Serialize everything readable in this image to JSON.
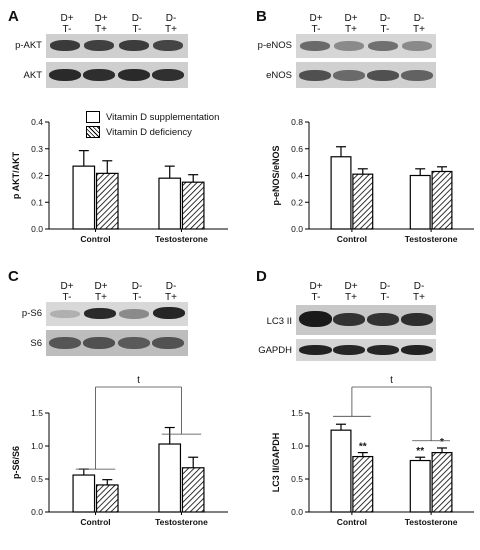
{
  "panels": {
    "A": {
      "letter": "A",
      "blots": [
        {
          "label": "p-AKT"
        },
        {
          "label": "AKT"
        }
      ]
    },
    "B": {
      "letter": "B",
      "blots": [
        {
          "label": "p-eNOS"
        },
        {
          "label": "eNOS"
        }
      ]
    },
    "C": {
      "letter": "C",
      "blots": [
        {
          "label": "p-S6"
        },
        {
          "label": "S6"
        }
      ]
    },
    "D": {
      "letter": "D",
      "blots": [
        {
          "label": "LC3 II"
        },
        {
          "label": "GAPDH"
        }
      ]
    }
  },
  "lane_headers": [
    {
      "d": "D+",
      "t": "T-"
    },
    {
      "d": "D+",
      "t": "T+"
    },
    {
      "d": "D-",
      "t": "T-"
    },
    {
      "d": "D-",
      "t": "T+"
    }
  ],
  "legend": {
    "items": [
      {
        "label": "Vitamin D supplementation",
        "style": "open"
      },
      {
        "label": "Vitamin D deficiency",
        "style": "hatched"
      }
    ]
  },
  "chart_data": [
    {
      "panel": "A",
      "type": "bar",
      "categories": [
        "Control",
        "Testosterone"
      ],
      "ylabel": "p AKT/AKT",
      "ylim": [
        0,
        0.4
      ],
      "yticks": [
        "0.0",
        "0.1",
        "0.2",
        "0.3",
        "0.4"
      ],
      "series": [
        {
          "name": "Vitamin D supplementation",
          "values": [
            0.235,
            0.19
          ],
          "errors": [
            0.058,
            0.045
          ]
        },
        {
          "name": "Vitamin D deficiency",
          "values": [
            0.208,
            0.175
          ],
          "errors": [
            0.047,
            0.028
          ]
        }
      ]
    },
    {
      "panel": "B",
      "type": "bar",
      "categories": [
        "Control",
        "Testosterone"
      ],
      "ylabel": "p-eNOS/eNOS",
      "ylim": [
        0,
        0.8
      ],
      "yticks": [
        "0.0",
        "0.2",
        "0.4",
        "0.6",
        "0.8"
      ],
      "series": [
        {
          "name": "Vitamin D supplementation",
          "values": [
            0.54,
            0.4
          ],
          "errors": [
            0.075,
            0.05
          ]
        },
        {
          "name": "Vitamin D deficiency",
          "values": [
            0.41,
            0.43
          ],
          "errors": [
            0.04,
            0.035
          ]
        }
      ]
    },
    {
      "panel": "C",
      "type": "bar",
      "categories": [
        "Control",
        "Testosterone"
      ],
      "ylabel": "p-S6/S6",
      "ylim": [
        0,
        1.5
      ],
      "yticks": [
        "0.0",
        "0.5",
        "1.0",
        "1.5"
      ],
      "significance": "t",
      "series": [
        {
          "name": "Vitamin D supplementation",
          "values": [
            0.56,
            1.03
          ],
          "errors": [
            0.09,
            0.25
          ]
        },
        {
          "name": "Vitamin D deficiency",
          "values": [
            0.41,
            0.67
          ],
          "errors": [
            0.08,
            0.16
          ]
        }
      ],
      "stars": [
        [
          "",
          ""
        ],
        [
          "",
          ""
        ]
      ]
    },
    {
      "panel": "D",
      "type": "bar",
      "categories": [
        "Control",
        "Testosterone"
      ],
      "ylabel": "LC3 II/GAPDH",
      "ylim": [
        0,
        1.5
      ],
      "yticks": [
        "0.0",
        "0.5",
        "1.0",
        "1.5"
      ],
      "significance": "t",
      "series": [
        {
          "name": "Vitamin D supplementation",
          "values": [
            1.24,
            0.78
          ],
          "errors": [
            0.09,
            0.05
          ]
        },
        {
          "name": "Vitamin D deficiency",
          "values": [
            0.84,
            0.9
          ],
          "errors": [
            0.06,
            0.07
          ]
        }
      ],
      "stars": [
        [
          "",
          "**"
        ],
        [
          "**",
          "*"
        ]
      ]
    }
  ]
}
